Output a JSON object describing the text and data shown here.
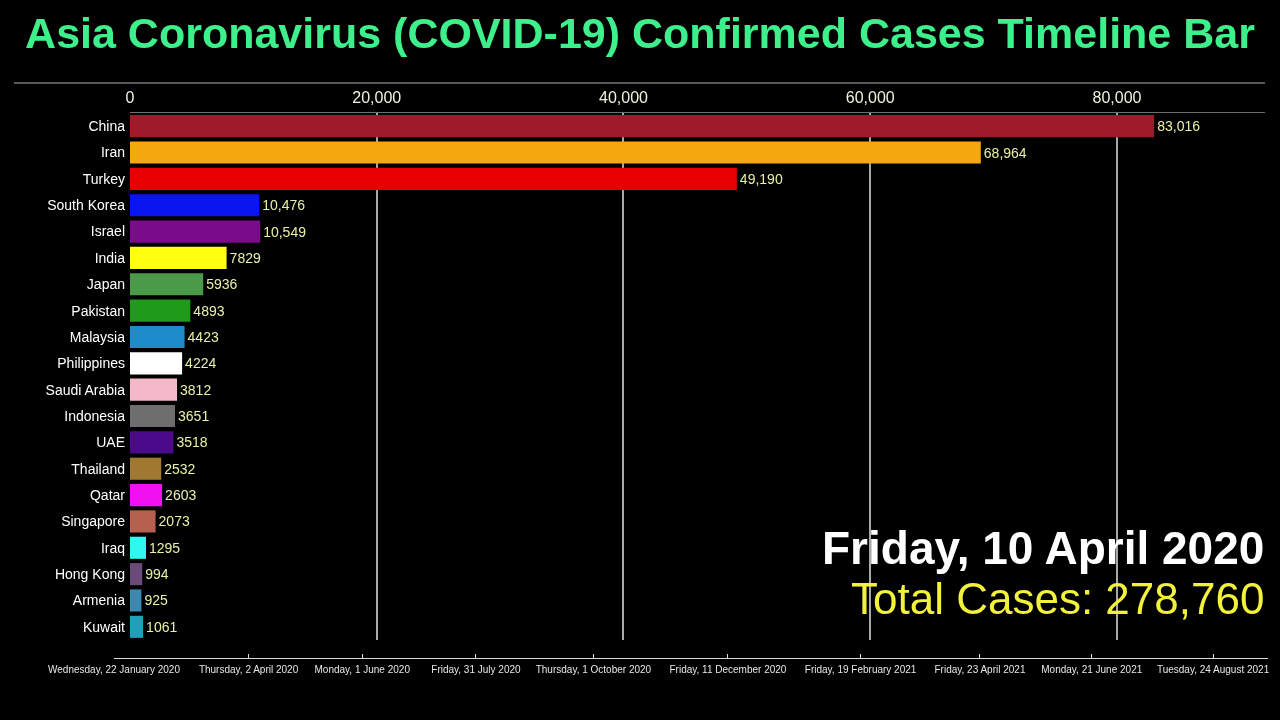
{
  "chart_data": {
    "type": "bar",
    "orientation": "horizontal",
    "title": "Asia Coronavirus (COVID-19) Confirmed Cases Timeline Bar",
    "categories": [
      "China",
      "Iran",
      "Turkey",
      "South Korea",
      "Israel",
      "India",
      "Japan",
      "Pakistan",
      "Malaysia",
      "Philippines",
      "Saudi Arabia",
      "Indonesia",
      "UAE",
      "Thailand",
      "Qatar",
      "Singapore",
      "Iraq",
      "Hong Kong",
      "Armenia",
      "Kuwait"
    ],
    "values": [
      83016,
      68964,
      49190,
      10476,
      10549,
      7829,
      5936,
      4893,
      4423,
      4224,
      3812,
      3651,
      3518,
      2532,
      2603,
      2073,
      1295,
      994,
      925,
      1061
    ],
    "value_labels": [
      "83,016",
      "68,964",
      "49,190",
      "10,476",
      "10,549",
      "7829",
      "5936",
      "4893",
      "4423",
      "4224",
      "3812",
      "3651",
      "3518",
      "2532",
      "2603",
      "2073",
      "1295",
      "994",
      "925",
      "1061"
    ],
    "colors": [
      "#9e1b2b",
      "#f5a80f",
      "#e80000",
      "#0a14f0",
      "#7c0a8c",
      "#ffff10",
      "#4a9a4a",
      "#1f9a1a",
      "#1e8cc8",
      "#ffffff",
      "#f4b8c8",
      "#6e6e6e",
      "#4b0a8a",
      "#a07830",
      "#f010f0",
      "#b86050",
      "#30f8f0",
      "#6a4a78",
      "#3a8ab0",
      "#20a0b8"
    ],
    "xlim": [
      0,
      92000
    ],
    "xticks": [
      0,
      {
        "value": 20000,
        "label": "20,000"
      },
      {
        "value": 40000,
        "label": "40,000"
      },
      {
        "value": 60000,
        "label": "60,000"
      },
      {
        "value": 80000,
        "label": "80,000"
      }
    ],
    "x2lim": [
      "2020-01-22",
      "2021-09-22"
    ],
    "x2ticks": [
      {
        "value": "2020-01-22",
        "label": "Wednesday, 22 January 2020"
      },
      {
        "value": "2020-04-02",
        "label": "Thursday, 2 April 2020"
      },
      {
        "value": "2020-06-01",
        "label": "Monday, 1 June 2020"
      },
      {
        "value": "2020-07-31",
        "label": "Friday, 31 July 2020"
      },
      {
        "value": "2020-10-01",
        "label": "Thursday, 1 October 2020"
      },
      {
        "value": "2020-12-11",
        "label": "Friday, 11 December 2020"
      },
      {
        "value": "2021-02-19",
        "label": "Friday, 19 February 2021"
      },
      {
        "value": "2021-04-23",
        "label": "Friday, 23 April 2021"
      },
      {
        "value": "2021-06-21",
        "label": "Monday, 21 June 2021"
      },
      {
        "value": "2021-08-24",
        "label": "Tuesday, 24 August 2021"
      }
    ],
    "annotations": [
      "Friday, 10 April 2020",
      "Total Cases: 278,760"
    ],
    "grid": "x",
    "legend": false
  }
}
